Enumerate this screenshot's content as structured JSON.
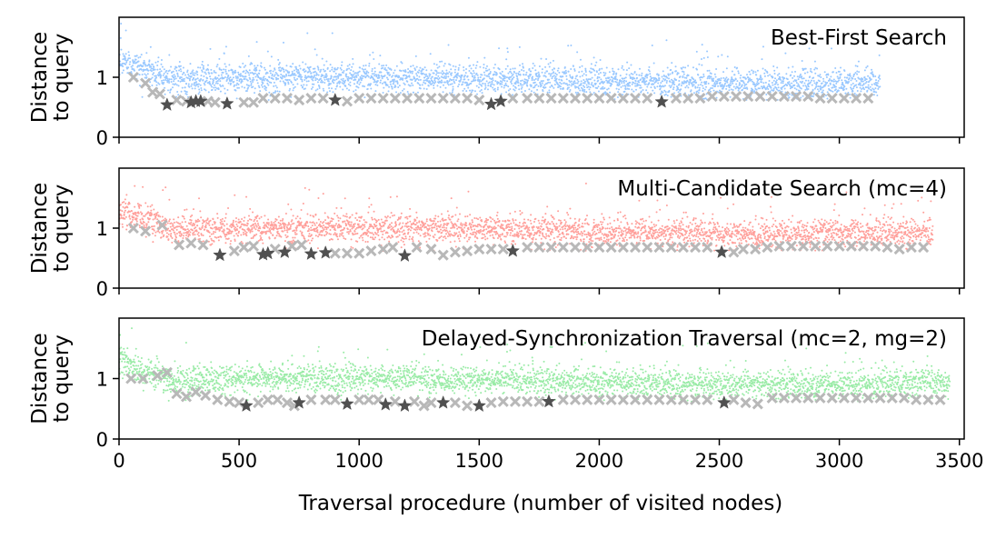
{
  "chart_data": {
    "type": "scatter",
    "xlabel": "Traversal procedure (number of visited nodes)",
    "ylabel_lines": [
      "Distance",
      "to query"
    ],
    "x_ticks": [
      0,
      500,
      1000,
      1500,
      2000,
      2500,
      3000,
      3500
    ],
    "y_ticks": [
      0,
      1
    ],
    "xlim": [
      0,
      3520
    ],
    "ylim": [
      0,
      2.0
    ],
    "grid": false,
    "colors": {
      "bfs": "#99c8ff",
      "mcs": "#ff9f9a",
      "dst": "#99eba6",
      "cross": "#b8b8b8",
      "star": "#505050"
    },
    "panels": [
      {
        "title": "Best-First Search",
        "color_key": "bfs",
        "total_nodes": 3170,
        "stars": [
          [
            200,
            0.54
          ],
          [
            300,
            0.58
          ],
          [
            320,
            0.6
          ],
          [
            340,
            0.6
          ],
          [
            450,
            0.56
          ],
          [
            900,
            0.62
          ],
          [
            1550,
            0.55
          ],
          [
            1590,
            0.6
          ],
          [
            2260,
            0.59
          ]
        ],
        "crosses": [
          [
            60,
            1.0
          ],
          [
            110,
            0.9
          ],
          [
            140,
            0.75
          ],
          [
            170,
            0.72
          ],
          [
            240,
            0.62
          ],
          [
            280,
            0.6
          ],
          [
            370,
            0.6
          ],
          [
            400,
            0.58
          ],
          [
            520,
            0.58
          ],
          [
            560,
            0.58
          ],
          [
            600,
            0.65
          ],
          [
            650,
            0.65
          ],
          [
            700,
            0.65
          ],
          [
            750,
            0.62
          ],
          [
            800,
            0.65
          ],
          [
            850,
            0.65
          ],
          [
            950,
            0.6
          ],
          [
            1000,
            0.65
          ],
          [
            1050,
            0.65
          ],
          [
            1100,
            0.65
          ],
          [
            1150,
            0.65
          ],
          [
            1200,
            0.65
          ],
          [
            1250,
            0.65
          ],
          [
            1300,
            0.65
          ],
          [
            1350,
            0.65
          ],
          [
            1400,
            0.65
          ],
          [
            1450,
            0.65
          ],
          [
            1500,
            0.62
          ],
          [
            1640,
            0.65
          ],
          [
            1700,
            0.65
          ],
          [
            1750,
            0.65
          ],
          [
            1800,
            0.65
          ],
          [
            1850,
            0.65
          ],
          [
            1900,
            0.65
          ],
          [
            1950,
            0.65
          ],
          [
            2000,
            0.65
          ],
          [
            2050,
            0.65
          ],
          [
            2100,
            0.65
          ],
          [
            2150,
            0.65
          ],
          [
            2200,
            0.65
          ],
          [
            2320,
            0.65
          ],
          [
            2370,
            0.65
          ],
          [
            2420,
            0.65
          ],
          [
            2470,
            0.68
          ],
          [
            2520,
            0.68
          ],
          [
            2570,
            0.68
          ],
          [
            2620,
            0.68
          ],
          [
            2670,
            0.68
          ],
          [
            2720,
            0.68
          ],
          [
            2770,
            0.68
          ],
          [
            2820,
            0.68
          ],
          [
            2870,
            0.68
          ],
          [
            2920,
            0.65
          ],
          [
            2970,
            0.65
          ],
          [
            3020,
            0.65
          ],
          [
            3070,
            0.65
          ],
          [
            3120,
            0.65
          ]
        ]
      },
      {
        "title": "Multi-Candidate Search (mc=4)",
        "color_key": "mcs",
        "total_nodes": 3390,
        "stars": [
          [
            420,
            0.55
          ],
          [
            600,
            0.56
          ],
          [
            620,
            0.58
          ],
          [
            690,
            0.6
          ],
          [
            800,
            0.57
          ],
          [
            860,
            0.59
          ],
          [
            1190,
            0.54
          ],
          [
            1640,
            0.62
          ],
          [
            2510,
            0.6
          ]
        ],
        "crosses": [
          [
            60,
            1.0
          ],
          [
            110,
            0.95
          ],
          [
            180,
            1.05
          ],
          [
            250,
            0.72
          ],
          [
            300,
            0.75
          ],
          [
            350,
            0.72
          ],
          [
            480,
            0.62
          ],
          [
            520,
            0.68
          ],
          [
            560,
            0.7
          ],
          [
            650,
            0.65
          ],
          [
            720,
            0.7
          ],
          [
            760,
            0.72
          ],
          [
            900,
            0.58
          ],
          [
            950,
            0.58
          ],
          [
            1000,
            0.58
          ],
          [
            1050,
            0.62
          ],
          [
            1100,
            0.65
          ],
          [
            1140,
            0.68
          ],
          [
            1240,
            0.68
          ],
          [
            1300,
            0.65
          ],
          [
            1350,
            0.55
          ],
          [
            1400,
            0.6
          ],
          [
            1450,
            0.62
          ],
          [
            1500,
            0.65
          ],
          [
            1550,
            0.65
          ],
          [
            1600,
            0.65
          ],
          [
            1700,
            0.68
          ],
          [
            1750,
            0.68
          ],
          [
            1800,
            0.68
          ],
          [
            1850,
            0.68
          ],
          [
            1900,
            0.68
          ],
          [
            1950,
            0.68
          ],
          [
            2000,
            0.68
          ],
          [
            2050,
            0.68
          ],
          [
            2100,
            0.68
          ],
          [
            2150,
            0.68
          ],
          [
            2200,
            0.68
          ],
          [
            2250,
            0.68
          ],
          [
            2300,
            0.68
          ],
          [
            2350,
            0.68
          ],
          [
            2400,
            0.68
          ],
          [
            2450,
            0.68
          ],
          [
            2560,
            0.6
          ],
          [
            2600,
            0.65
          ],
          [
            2650,
            0.65
          ],
          [
            2700,
            0.68
          ],
          [
            2750,
            0.7
          ],
          [
            2800,
            0.7
          ],
          [
            2850,
            0.7
          ],
          [
            2900,
            0.7
          ],
          [
            2950,
            0.7
          ],
          [
            3000,
            0.7
          ],
          [
            3050,
            0.7
          ],
          [
            3100,
            0.7
          ],
          [
            3150,
            0.7
          ],
          [
            3200,
            0.68
          ],
          [
            3250,
            0.65
          ],
          [
            3300,
            0.68
          ],
          [
            3350,
            0.68
          ]
        ]
      },
      {
        "title": "Delayed-Synchronization Traversal (mc=2, mg=2)",
        "color_key": "dst",
        "total_nodes": 3460,
        "stars": [
          [
            530,
            0.55
          ],
          [
            750,
            0.6
          ],
          [
            950,
            0.58
          ],
          [
            1110,
            0.57
          ],
          [
            1190,
            0.55
          ],
          [
            1350,
            0.6
          ],
          [
            1500,
            0.55
          ],
          [
            1790,
            0.62
          ],
          [
            2520,
            0.6
          ]
        ],
        "crosses": [
          [
            50,
            1.0
          ],
          [
            100,
            1.0
          ],
          [
            160,
            1.05
          ],
          [
            200,
            1.1
          ],
          [
            240,
            0.75
          ],
          [
            280,
            0.7
          ],
          [
            320,
            0.78
          ],
          [
            360,
            0.72
          ],
          [
            410,
            0.65
          ],
          [
            460,
            0.62
          ],
          [
            500,
            0.6
          ],
          [
            580,
            0.6
          ],
          [
            620,
            0.65
          ],
          [
            660,
            0.65
          ],
          [
            700,
            0.6
          ],
          [
            730,
            0.55
          ],
          [
            800,
            0.65
          ],
          [
            860,
            0.65
          ],
          [
            900,
            0.65
          ],
          [
            1000,
            0.65
          ],
          [
            1040,
            0.65
          ],
          [
            1080,
            0.65
          ],
          [
            1150,
            0.62
          ],
          [
            1230,
            0.62
          ],
          [
            1270,
            0.55
          ],
          [
            1300,
            0.6
          ],
          [
            1400,
            0.6
          ],
          [
            1450,
            0.55
          ],
          [
            1550,
            0.6
          ],
          [
            1600,
            0.62
          ],
          [
            1650,
            0.62
          ],
          [
            1700,
            0.62
          ],
          [
            1750,
            0.62
          ],
          [
            1850,
            0.65
          ],
          [
            1900,
            0.65
          ],
          [
            1950,
            0.65
          ],
          [
            2000,
            0.65
          ],
          [
            2050,
            0.65
          ],
          [
            2100,
            0.65
          ],
          [
            2150,
            0.65
          ],
          [
            2200,
            0.65
          ],
          [
            2250,
            0.65
          ],
          [
            2300,
            0.65
          ],
          [
            2350,
            0.65
          ],
          [
            2400,
            0.65
          ],
          [
            2450,
            0.65
          ],
          [
            2560,
            0.65
          ],
          [
            2610,
            0.6
          ],
          [
            2660,
            0.58
          ],
          [
            2720,
            0.68
          ],
          [
            2770,
            0.68
          ],
          [
            2820,
            0.68
          ],
          [
            2870,
            0.68
          ],
          [
            2920,
            0.68
          ],
          [
            2970,
            0.68
          ],
          [
            3020,
            0.68
          ],
          [
            3070,
            0.68
          ],
          [
            3120,
            0.68
          ],
          [
            3170,
            0.68
          ],
          [
            3220,
            0.68
          ],
          [
            3270,
            0.68
          ],
          [
            3320,
            0.65
          ],
          [
            3370,
            0.65
          ],
          [
            3420,
            0.65
          ]
        ]
      }
    ]
  }
}
